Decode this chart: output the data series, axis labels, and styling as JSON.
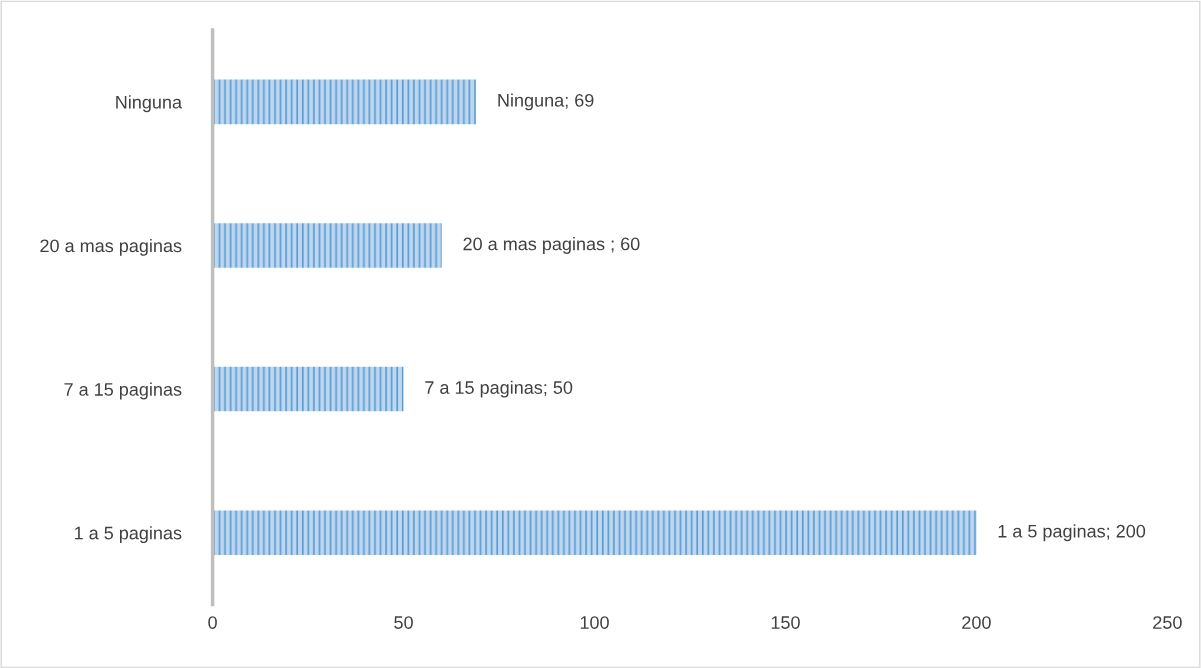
{
  "chart_data": {
    "type": "bar",
    "orientation": "horizontal",
    "categories": [
      "Ninguna",
      "20 a mas paginas",
      "7 a 15 paginas",
      "1 a 5 paginas"
    ],
    "values": [
      69,
      60,
      50,
      200
    ],
    "value_labels": [
      "Ninguna; 69",
      "20 a mas paginas ; 60",
      "7 a 15 paginas; 50",
      "1 a 5 paginas; 200"
    ],
    "color": "#5b9bd5",
    "xlim": [
      0,
      250
    ],
    "xticks": [
      0,
      50,
      100,
      150,
      200,
      250
    ],
    "grid": false,
    "legend": false
  }
}
